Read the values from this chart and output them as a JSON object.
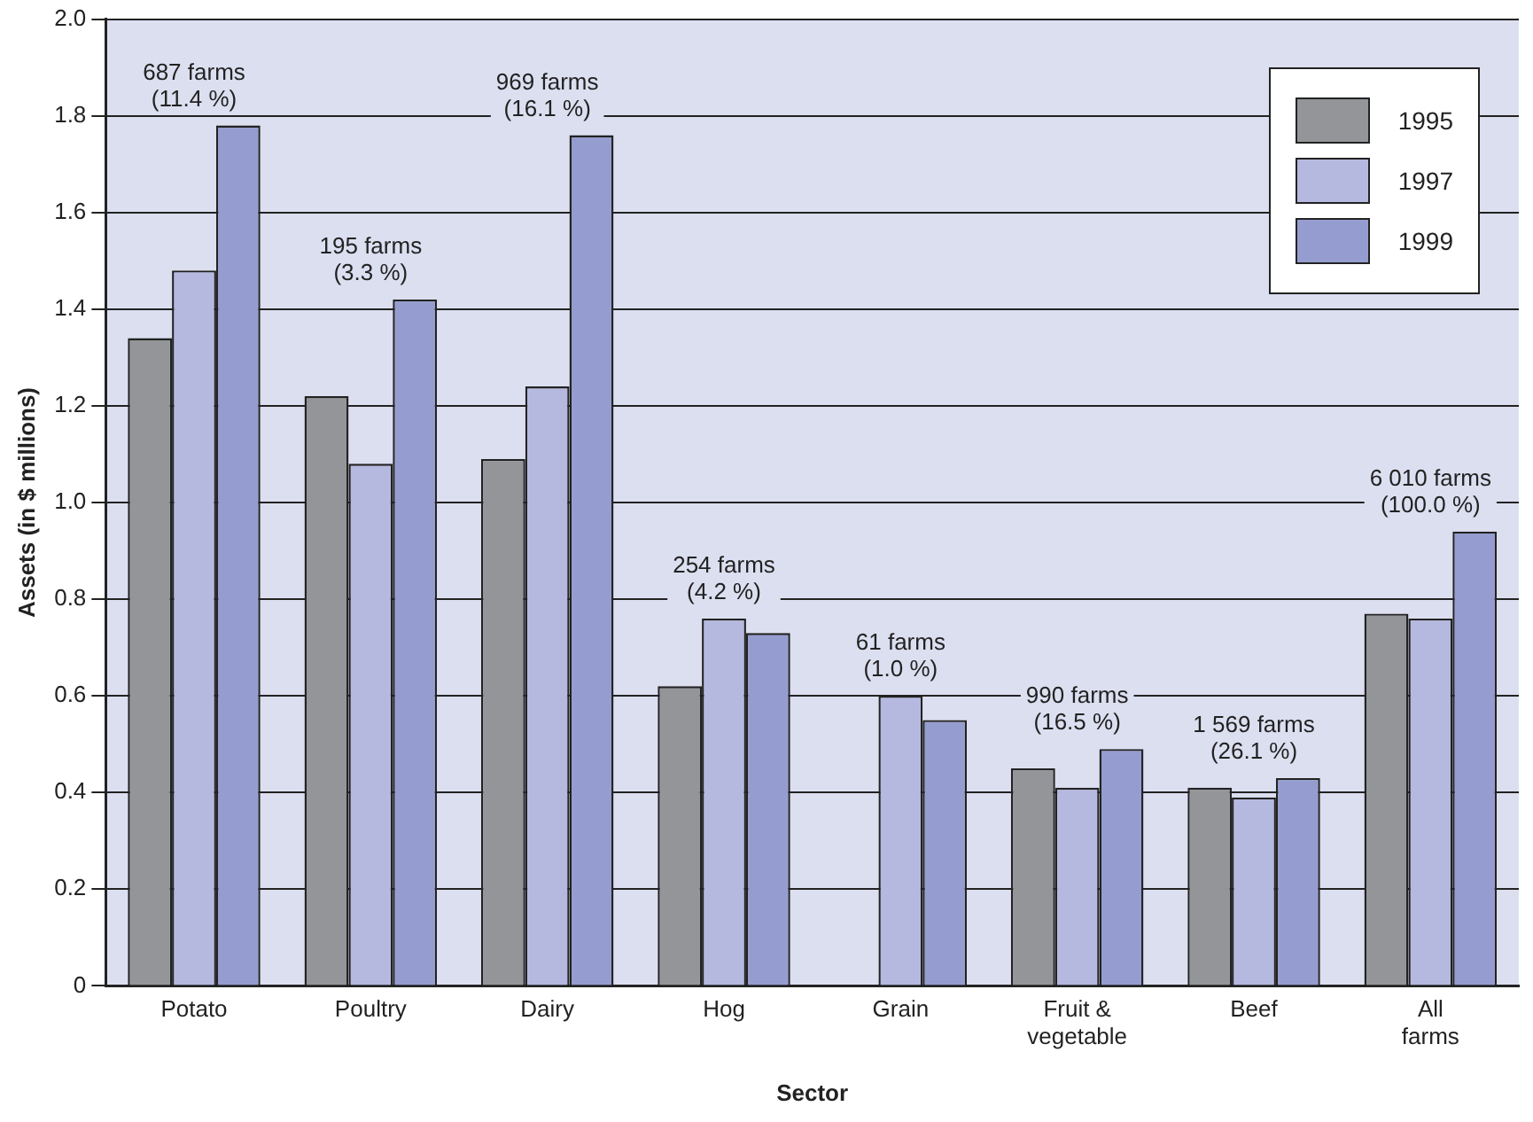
{
  "chart_data": {
    "type": "bar",
    "xlabel": "Sector",
    "ylabel": "Assets (in $ millions)",
    "categories": [
      "Potato",
      "Poultry",
      "Dairy",
      "Hog",
      "Grain",
      "Fruit & vegetable",
      "Beef",
      "All farms"
    ],
    "series": [
      {
        "name": "1995",
        "color": "#939598",
        "values": [
          1.34,
          1.22,
          1.09,
          0.62,
          null,
          0.45,
          0.41,
          0.77
        ]
      },
      {
        "name": "1997",
        "color": "#b5b9e0",
        "values": [
          1.48,
          1.08,
          1.24,
          0.76,
          0.6,
          0.41,
          0.39,
          0.76
        ]
      },
      {
        "name": "1999",
        "color": "#959dd0",
        "values": [
          1.78,
          1.42,
          1.76,
          0.73,
          0.55,
          0.49,
          0.43,
          0.94
        ]
      }
    ],
    "ylim": [
      0,
      2
    ],
    "yticks": [
      0,
      {
        "value": 0.2,
        "label": "0.2"
      },
      {
        "value": 0.4,
        "label": "0.4"
      },
      {
        "value": 0.6,
        "label": "0.6"
      },
      {
        "value": 0.8,
        "label": "0.8"
      },
      {
        "value": 1,
        "label": "1.0"
      },
      {
        "value": 1.2,
        "label": "1.2"
      },
      {
        "value": 1.4,
        "label": "1.4"
      },
      {
        "value": 1.6,
        "label": "1.6"
      },
      {
        "value": 1.8,
        "label": "1.8"
      },
      {
        "value": 2,
        "label": "2.0"
      }
    ],
    "grid": "y",
    "legend": "top right",
    "annotations": [
      "687 farms\n(11.4 %)",
      "195 farms\n(3.3 %)",
      "969 farms\n(16.1 %)",
      "254 farms\n(4.2 %)",
      "61 farms\n(1.0 %)",
      "990 farms\n(16.5 %)",
      "1 569 farms\n(26.1 %)",
      "6 010 farms\n(100.0 %)"
    ]
  }
}
